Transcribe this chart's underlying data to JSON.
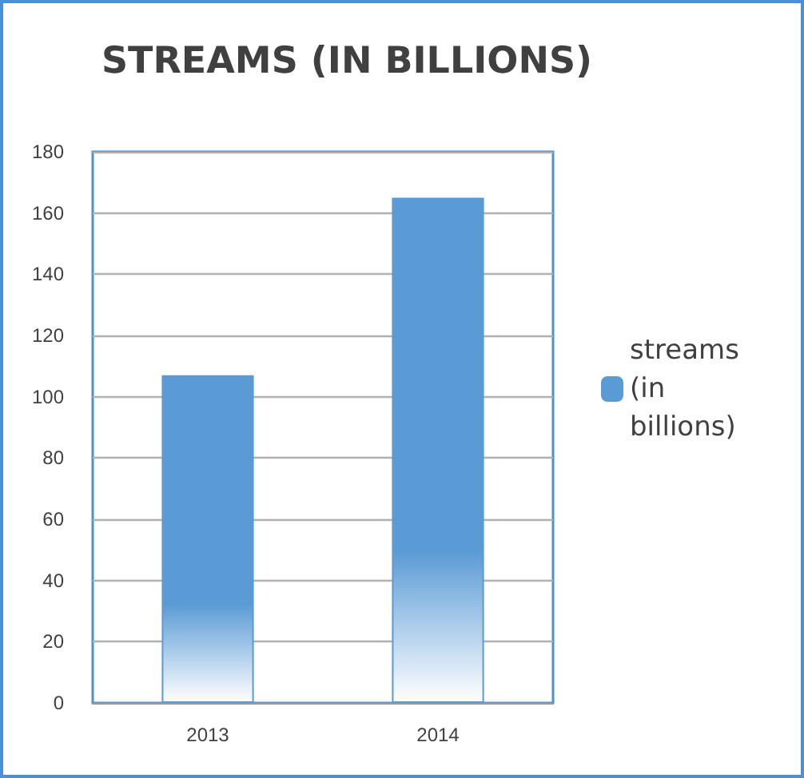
{
  "chart_data": {
    "type": "bar",
    "title": "STREAMS (IN BILLIONS)",
    "categories": [
      "2013",
      "2014"
    ],
    "series": [
      {
        "name": "streams (in billions)",
        "color": "#5b9bd5",
        "values": [
          107,
          165
        ]
      }
    ],
    "ylim": [
      0,
      180
    ],
    "yticks": [
      0,
      20,
      40,
      60,
      80,
      100,
      120,
      140,
      160,
      180
    ],
    "grid": "y",
    "legend": "right"
  }
}
